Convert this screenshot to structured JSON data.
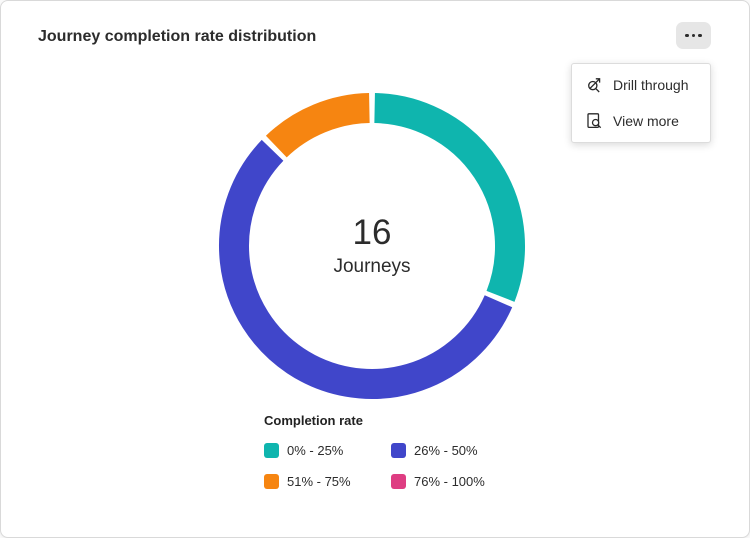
{
  "card": {
    "title": "Journey completion rate distribution"
  },
  "menu": {
    "items": [
      {
        "label": "Drill through"
      },
      {
        "label": "View more"
      }
    ]
  },
  "donut_center": {
    "value": "16",
    "label": "Journeys"
  },
  "legend": {
    "title": "Completion rate",
    "items": [
      {
        "label": "0% - 25%",
        "color": "#0FB5AE"
      },
      {
        "label": "26% - 50%",
        "color": "#4046CA"
      },
      {
        "label": "51% - 75%",
        "color": "#F68511"
      },
      {
        "label": "76% - 100%",
        "color": "#DE3D82"
      }
    ]
  },
  "chart_data": {
    "type": "pie",
    "variant": "donut",
    "title": "Journey completion rate distribution",
    "categories": [
      "0% - 25%",
      "26% - 50%",
      "51% - 75%",
      "76% - 100%"
    ],
    "values": [
      5,
      9,
      2,
      0
    ],
    "colors": [
      "#0FB5AE",
      "#4046CA",
      "#F68511",
      "#DE3D82"
    ],
    "total": 16,
    "center_value": "16",
    "center_label": "Journeys",
    "legend_title": "Completion rate",
    "legend_position": "bottom-left"
  }
}
